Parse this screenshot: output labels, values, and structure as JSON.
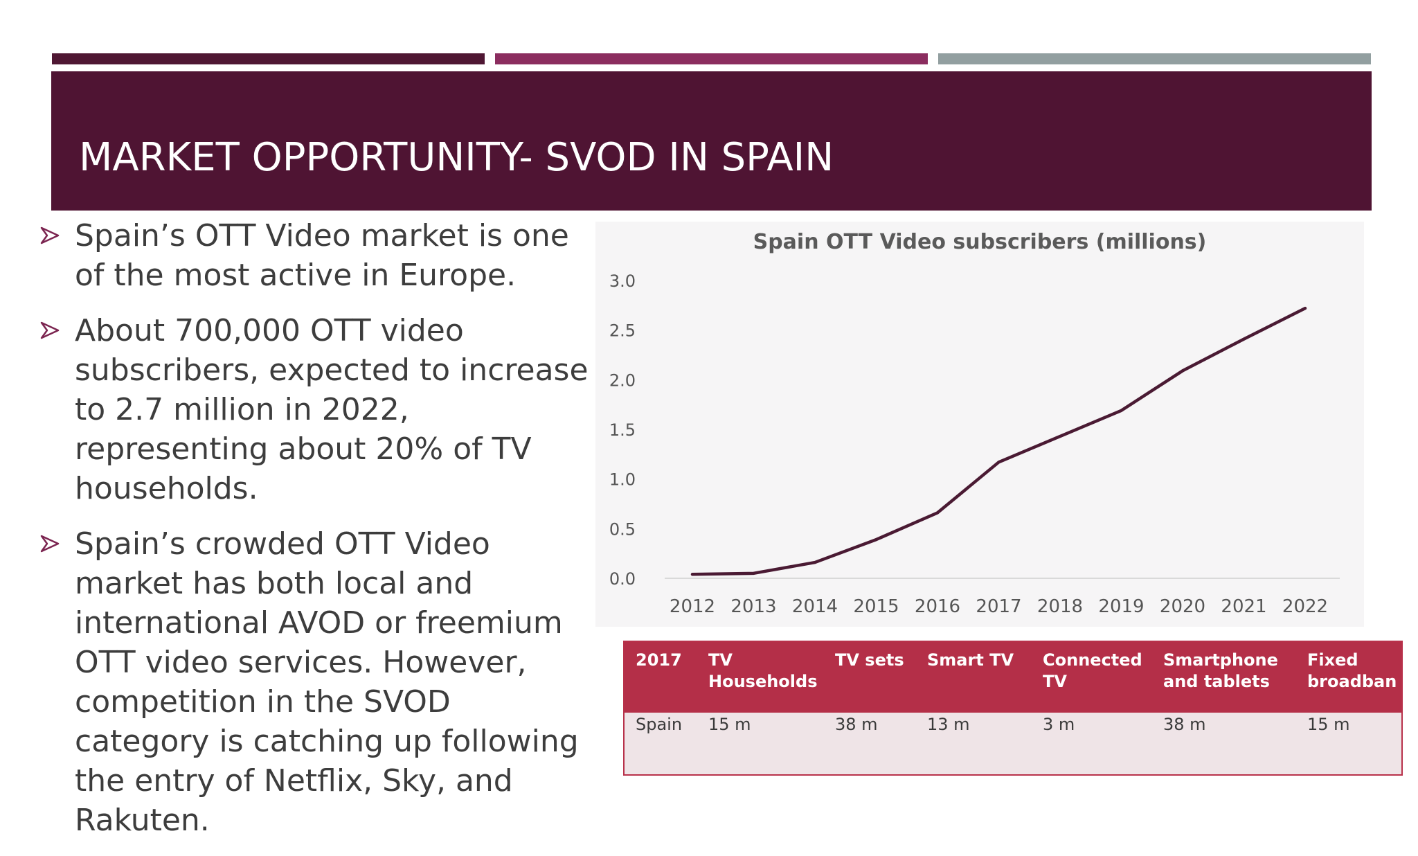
{
  "slide": {
    "title": "MARKET OPPORTUNITY- SVOD IN SPAIN"
  },
  "bullets": [
    "Spain’s OTT Video market is one of the most active in Europe.",
    "About 700,000 OTT video subscribers, expected to increase to 2.7 million in 2022, representing about 20% of TV households.",
    "Spain’s crowded OTT Video market has  both local and international AVOD or freemium OTT video services. However, competition in the SVOD category is catching up following the entry of Netflix, Sky, and Rakuten."
  ],
  "colors": {
    "title_band": "#4f1433",
    "accent_bar_1": "#4f1733",
    "accent_bar_2": "#8b2d5f",
    "accent_bar_3": "#929fa0",
    "line": "#4a1a33",
    "table_header": "#b42f48"
  },
  "chart_data": {
    "type": "line",
    "title": "Spain OTT Video subscribers (millions)",
    "xlabel": "",
    "ylabel": "",
    "x": [
      "2012",
      "2013",
      "2014",
      "2015",
      "2016",
      "2017",
      "2018",
      "2019",
      "2020",
      "2021",
      "2022"
    ],
    "series": [
      {
        "values": [
          0.04,
          0.05,
          0.16,
          0.39,
          0.66,
          1.17,
          1.43,
          1.69,
          2.09,
          2.41,
          2.72
        ]
      }
    ],
    "yticks": [
      "0.0",
      "0.5",
      "1.0",
      "1.5",
      "2.0",
      "2.5",
      "3.0"
    ],
    "ylim": [
      0,
      3.0
    ],
    "grid": false,
    "legend": "none"
  },
  "table": {
    "headers": [
      "2017",
      "TV Households",
      "TV sets",
      "Smart TV",
      "Connected TV",
      "Smartphone and tablets",
      "Fixed broadban"
    ],
    "rows": [
      [
        "Spain",
        "15 m",
        "38 m",
        "13 m",
        "3 m",
        "38 m",
        "15 m"
      ]
    ]
  }
}
